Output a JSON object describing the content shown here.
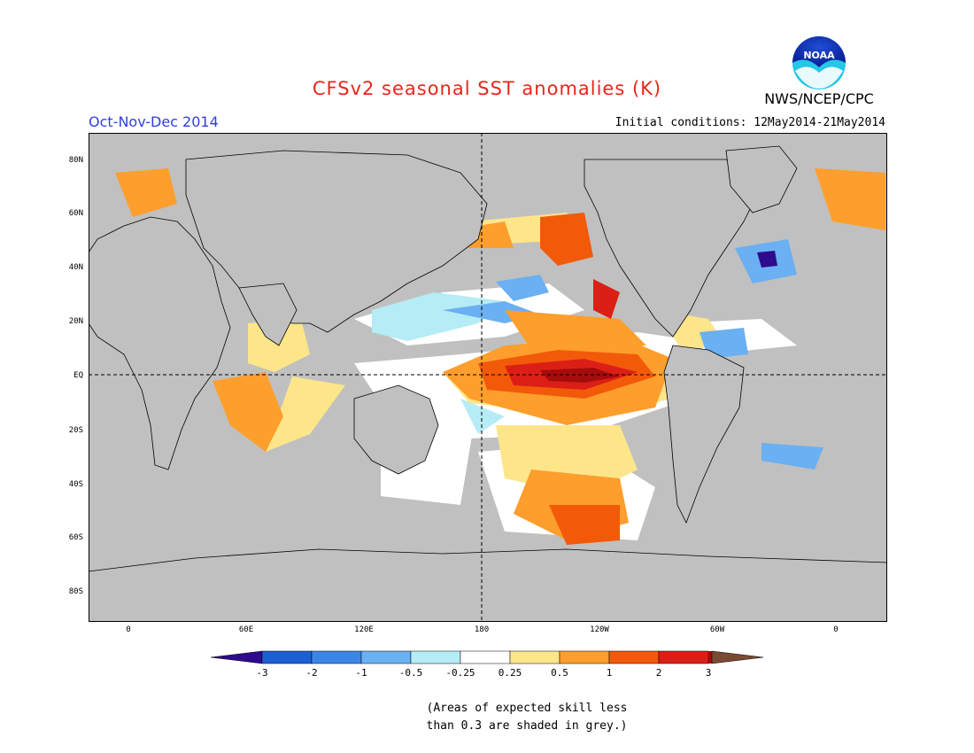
{
  "header": {
    "title": "CFSv2 seasonal SST anomalies (K)",
    "season": "Oct-Nov-Dec 2014",
    "agency": "NWS/NCEP/CPC",
    "initial_conditions": "Initial conditions: 12May2014-21May2014",
    "logo_text": "NOAA"
  },
  "colors": {
    "land": "#c0c0c0",
    "ocean_masked": "#c0c0c0",
    "coast": "#000000",
    "title": "#e8251c",
    "season": "#2f3fe0",
    "scale": [
      "#2e0b8c",
      "#1d5fd6",
      "#3a86e8",
      "#6ab0f2",
      "#b5ecf5",
      "#ffffff",
      "#ffffff",
      "#fde58a",
      "#fe9e2c",
      "#f25a0a",
      "#dc1f16",
      "#a50c0c",
      "#7a4a32"
    ]
  },
  "lat_labels": [
    "80N",
    "60N",
    "40N",
    "20N",
    "EQ",
    "20S",
    "40S",
    "60S",
    "80S"
  ],
  "lon_labels": [
    "0",
    "60E",
    "120E",
    "180",
    "120W",
    "60W",
    "0"
  ],
  "colorbar": {
    "labels": [
      "-3",
      "-2",
      "-1",
      "-0.5",
      "-0.25",
      "0.25",
      "0.5",
      "1",
      "2",
      "3"
    ]
  },
  "note": {
    "line1": "(Areas of expected skill less",
    "line2": "than 0.3 are shaded in grey.)"
  }
}
